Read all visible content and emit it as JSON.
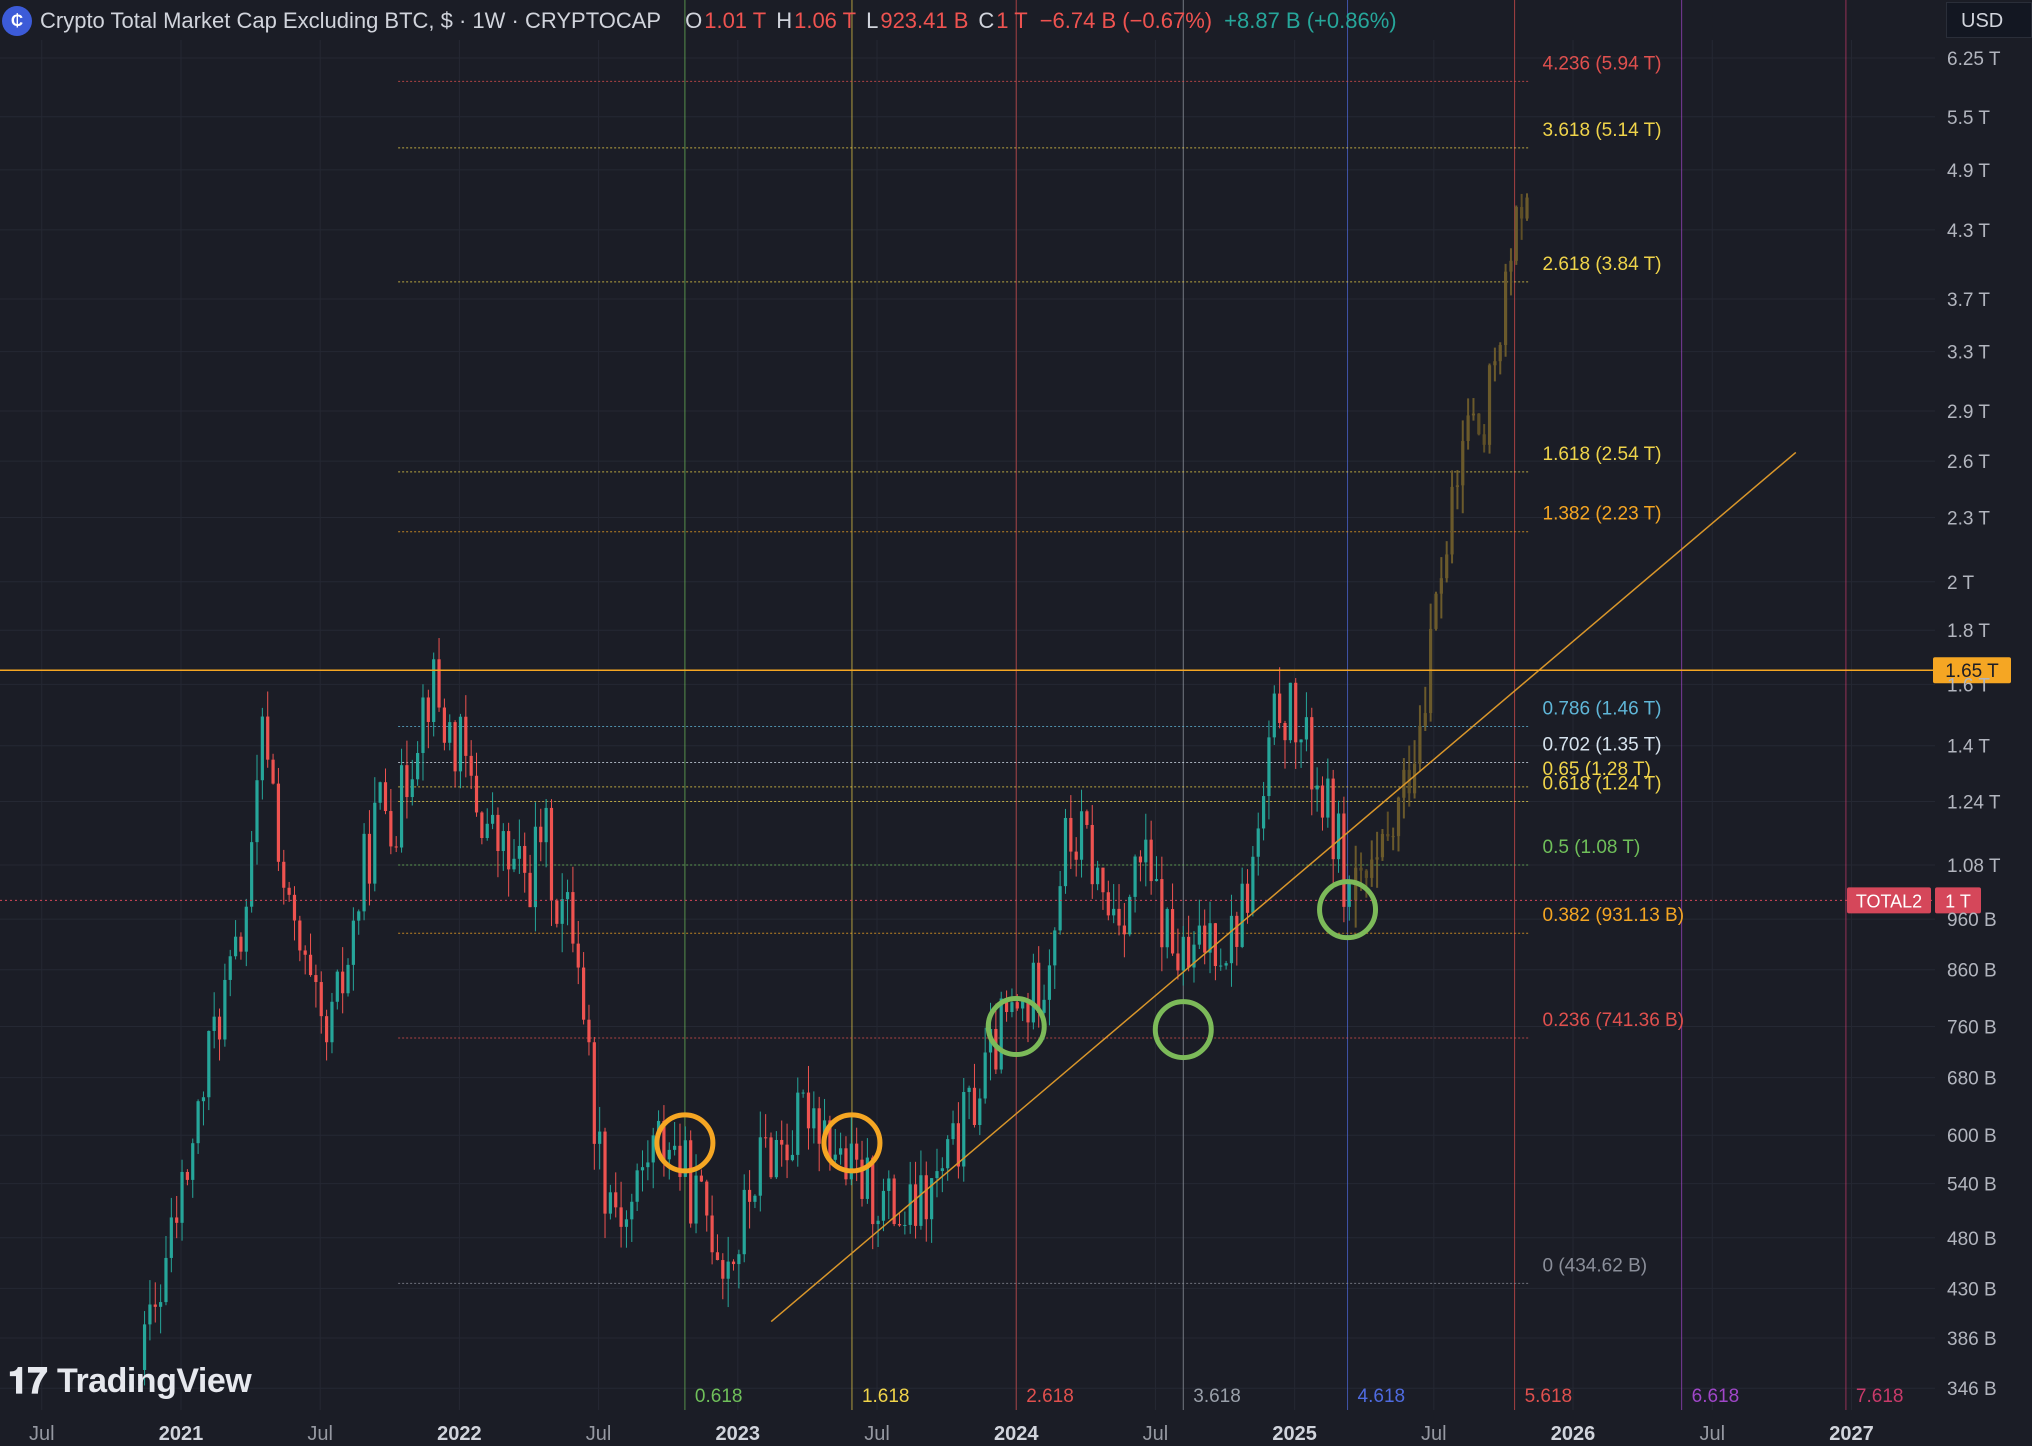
{
  "header": {
    "title": "Crypto Total Market Cap Excluding BTC, $ · 1W · CRYPTOCAP",
    "open_label": "O",
    "open_value": "1.01 T",
    "high_label": "H",
    "high_value": "1.06 T",
    "low_label": "L",
    "low_value": "923.41 B",
    "close_label": "C",
    "close_value": "1 T",
    "change": "−6.74 B (−0.67%)",
    "change2": "+8.87 B (+0.86%)"
  },
  "currency_button": "USD",
  "brand": "TradingView",
  "colors": {
    "up": "#26a69a",
    "down": "#ef5350",
    "horizontal_line": "#f5a623",
    "trendline": "#d9962a",
    "projection": "#6b5a2b"
  },
  "chart_data": {
    "type": "candlestick",
    "series_name": "TOTAL2",
    "timeframe": "1W",
    "y_scale": "log",
    "ylim": [
      330,
      6500
    ],
    "xlim": [
      2020.35,
      2027.3
    ],
    "price_axis_ticks": [
      "6.25 T",
      "5.5 T",
      "4.9 T",
      "4.3 T",
      "3.7 T",
      "3.3 T",
      "2.9 T",
      "2.6 T",
      "2.3 T",
      "2 T",
      "1.8 T",
      "1.6 T",
      "1.4 T",
      "1.24 T",
      "1.08 T",
      "960 B",
      "860 B",
      "760 B",
      "680 B",
      "600 B",
      "540 B",
      "480 B",
      "430 B",
      "386 B",
      "346 B"
    ],
    "price_axis_values": [
      6250,
      5500,
      4900,
      4300,
      3700,
      3300,
      2900,
      2600,
      2300,
      2000,
      1800,
      1600,
      1400,
      1240,
      1080,
      960,
      860,
      760,
      680,
      600,
      540,
      480,
      430,
      386,
      346
    ],
    "time_axis": [
      {
        "label": "Jul",
        "t": 2020.5
      },
      {
        "label": "2021",
        "t": 2021.0
      },
      {
        "label": "Jul",
        "t": 2021.5
      },
      {
        "label": "2022",
        "t": 2022.0
      },
      {
        "label": "Jul",
        "t": 2022.5
      },
      {
        "label": "2023",
        "t": 2023.0
      },
      {
        "label": "Jul",
        "t": 2023.5
      },
      {
        "label": "2024",
        "t": 2024.0
      },
      {
        "label": "Jul",
        "t": 2024.5
      },
      {
        "label": "2025",
        "t": 2025.0
      },
      {
        "label": "Jul",
        "t": 2025.5
      },
      {
        "label": "2026",
        "t": 2026.0
      },
      {
        "label": "Jul",
        "t": 2026.5
      },
      {
        "label": "2027",
        "t": 2027.0
      }
    ],
    "candle_path": [
      [
        2020.85,
        360
      ],
      [
        2020.95,
        460
      ],
      [
        2021.05,
        600
      ],
      [
        2021.12,
        760
      ],
      [
        2021.2,
        880
      ],
      [
        2021.25,
        1050
      ],
      [
        2021.3,
        1500
      ],
      [
        2021.38,
        980
      ],
      [
        2021.45,
        840
      ],
      [
        2021.52,
        720
      ],
      [
        2021.6,
        880
      ],
      [
        2021.66,
        1080
      ],
      [
        2021.72,
        1250
      ],
      [
        2021.78,
        1200
      ],
      [
        2021.85,
        1480
      ],
      [
        2021.9,
        1620
      ],
      [
        2021.95,
        1450
      ],
      [
        2022.0,
        1400
      ],
      [
        2022.05,
        1250
      ],
      [
        2022.12,
        1150
      ],
      [
        2022.18,
        1080
      ],
      [
        2022.25,
        1050
      ],
      [
        2022.3,
        1180
      ],
      [
        2022.35,
        1000
      ],
      [
        2022.42,
        940
      ],
      [
        2022.45,
        780
      ],
      [
        2022.48,
        640
      ],
      [
        2022.52,
        550
      ],
      [
        2022.6,
        500
      ],
      [
        2022.68,
        580
      ],
      [
        2022.75,
        600
      ],
      [
        2022.8,
        560
      ],
      [
        2022.85,
        520
      ],
      [
        2022.9,
        500
      ],
      [
        2022.95,
        460
      ],
      [
        2023.0,
        470
      ],
      [
        2023.05,
        540
      ],
      [
        2023.1,
        580
      ],
      [
        2023.2,
        600
      ],
      [
        2023.26,
        650
      ],
      [
        2023.32,
        610
      ],
      [
        2023.38,
        560
      ],
      [
        2023.45,
        540
      ],
      [
        2023.52,
        520
      ],
      [
        2023.6,
        500
      ],
      [
        2023.68,
        520
      ],
      [
        2023.75,
        560
      ],
      [
        2023.82,
        620
      ],
      [
        2023.9,
        700
      ],
      [
        2023.95,
        760
      ],
      [
        2024.05,
        800
      ],
      [
        2024.12,
        900
      ],
      [
        2024.17,
        1130
      ],
      [
        2024.25,
        1140
      ],
      [
        2024.32,
        980
      ],
      [
        2024.4,
        1000
      ],
      [
        2024.45,
        1100
      ],
      [
        2024.5,
        1000
      ],
      [
        2024.56,
        900
      ],
      [
        2024.62,
        860
      ],
      [
        2024.7,
        940
      ],
      [
        2024.76,
        910
      ],
      [
        2024.82,
        1000
      ],
      [
        2024.86,
        1100
      ],
      [
        2024.9,
        1300
      ],
      [
        2024.94,
        1550
      ],
      [
        2024.98,
        1500
      ],
      [
        2025.02,
        1420
      ],
      [
        2025.06,
        1350
      ],
      [
        2025.1,
        1250
      ],
      [
        2025.15,
        1150
      ],
      [
        2025.2,
        1000
      ]
    ],
    "projection_path": [
      [
        2025.2,
        1000
      ],
      [
        2025.3,
        1060
      ],
      [
        2025.35,
        1150
      ],
      [
        2025.4,
        1300
      ],
      [
        2025.45,
        1500
      ],
      [
        2025.48,
        1700
      ],
      [
        2025.52,
        2000
      ],
      [
        2025.58,
        2400
      ],
      [
        2025.62,
        2900
      ],
      [
        2025.68,
        2700
      ],
      [
        2025.72,
        3300
      ],
      [
        2025.76,
        3800
      ],
      [
        2025.8,
        4300
      ],
      [
        2025.84,
        5000
      ]
    ],
    "fib_retracement": {
      "left_t": 2021.78,
      "right_t": 2025.84,
      "levels": [
        {
          "ratio": "4.236",
          "label": "4.236 (5.94 T)",
          "value": 5940,
          "color": "#e0504e"
        },
        {
          "ratio": "3.618",
          "label": "3.618 (5.14 T)",
          "value": 5140,
          "color": "#f0d44a"
        },
        {
          "ratio": "2.618",
          "label": "2.618 (3.84 T)",
          "value": 3840,
          "color": "#f0d44a"
        },
        {
          "ratio": "1.618",
          "label": "1.618 (2.54 T)",
          "value": 2540,
          "color": "#f0d44a"
        },
        {
          "ratio": "1.382",
          "label": "1.382 (2.23 T)",
          "value": 2230,
          "color": "#f5a623"
        },
        {
          "ratio": "0.786",
          "label": "0.786 (1.46 T)",
          "value": 1460,
          "color": "#5fb6d8"
        },
        {
          "ratio": "0.702",
          "label": "0.702 (1.35 T)",
          "value": 1350,
          "color": "#d7e3ee"
        },
        {
          "ratio": "0.65",
          "label": "0.65 (1.28 T)",
          "value": 1280,
          "color": "#f0d44a"
        },
        {
          "ratio": "0.618",
          "label": "0.618 (1.24 T)",
          "value": 1240,
          "color": "#f0d44a"
        },
        {
          "ratio": "0.5",
          "label": "0.5 (1.08 T)",
          "value": 1080,
          "color": "#6fbf5a"
        },
        {
          "ratio": "0.382",
          "label": "0.382 (931.13 B)",
          "value": 931.13,
          "color": "#f5a623"
        },
        {
          "ratio": "0.236",
          "label": "0.236 (741.36 B)",
          "value": 741.36,
          "color": "#e0504e"
        },
        {
          "ratio": "0",
          "label": "0 (434.62 B)",
          "value": 434.62,
          "color": "#8a8e99"
        }
      ]
    },
    "fib_time_zones": [
      {
        "label": "0.618",
        "t": 2022.81,
        "color": "#6fbf5a"
      },
      {
        "label": "1.618",
        "t": 2023.41,
        "color": "#f0d44a"
      },
      {
        "label": "2.618",
        "t": 2024.0,
        "color": "#e0504e"
      },
      {
        "label": "3.618",
        "t": 2024.6,
        "color": "#9aa0aa"
      },
      {
        "label": "4.618",
        "t": 2025.19,
        "color": "#4f6be0"
      },
      {
        "label": "5.618",
        "t": 2025.79,
        "color": "#e0504e"
      },
      {
        "label": "6.618",
        "t": 2026.39,
        "color": "#a046c8"
      },
      {
        "label": "7.618",
        "t": 2026.98,
        "color": "#c83a6a"
      }
    ],
    "horizontal_level": {
      "label": "1.65 T",
      "value": 1650
    },
    "current_price": {
      "series": "TOTAL2",
      "label": "1 T",
      "value": 1000
    },
    "trendline": {
      "start": [
        2023.12,
        400
      ],
      "end": [
        2026.8,
        2650
      ]
    },
    "circles": [
      {
        "t": 2022.81,
        "v": 590,
        "color": "#f5a623"
      },
      {
        "t": 2023.41,
        "v": 590,
        "color": "#f5a623"
      },
      {
        "t": 2024.0,
        "v": 760,
        "color": "#7cba59"
      },
      {
        "t": 2024.6,
        "v": 755,
        "color": "#7cba59"
      },
      {
        "t": 2025.19,
        "v": 980,
        "color": "#7cba59"
      }
    ]
  }
}
